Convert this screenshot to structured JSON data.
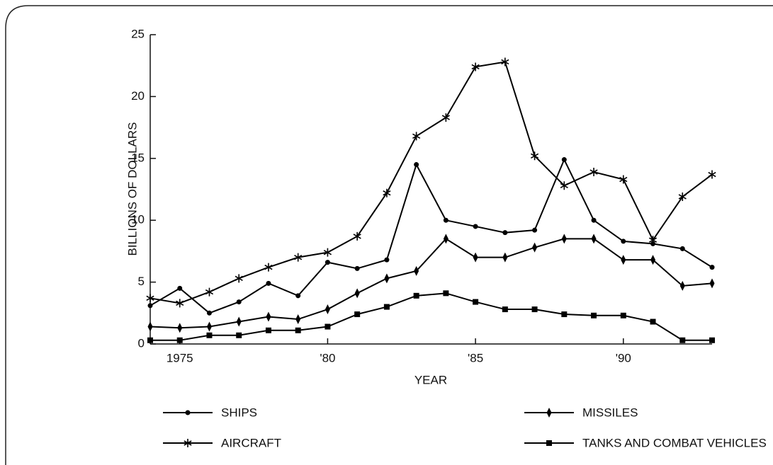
{
  "chart_data": {
    "type": "line",
    "x_label": "YEAR",
    "y_label": "BILLIONS OF DOLLARS",
    "x": [
      1974,
      1975,
      1976,
      1977,
      1978,
      1979,
      1980,
      1981,
      1982,
      1983,
      1984,
      1985,
      1986,
      1987,
      1988,
      1989,
      1990,
      1991,
      1992,
      1993
    ],
    "xlim": [
      1974,
      1993
    ],
    "xticks": [
      1975,
      {
        "value": 1980,
        "label": "'80"
      },
      {
        "value": 1985,
        "label": "'85"
      },
      {
        "value": 1990,
        "label": "'90"
      }
    ],
    "ylim": [
      0,
      25
    ],
    "yticks": [
      0,
      5,
      10,
      15,
      20,
      25
    ],
    "grid": false,
    "legend": "bottom",
    "series": [
      {
        "name": "SHIPS",
        "color": "#000000",
        "marker": "circle",
        "values": [
          3.1,
          4.5,
          2.5,
          3.4,
          4.9,
          3.9,
          6.6,
          6.1,
          6.8,
          14.5,
          10.0,
          9.5,
          9.0,
          9.2,
          14.9,
          10.0,
          8.3,
          8.1,
          7.7,
          6.2
        ]
      },
      {
        "name": "MISSILES",
        "color": "#000000",
        "marker": "diamond",
        "values": [
          1.4,
          1.3,
          1.4,
          1.8,
          2.2,
          2.0,
          2.8,
          4.1,
          5.3,
          5.9,
          8.5,
          7.0,
          7.0,
          7.8,
          8.5,
          8.5,
          6.8,
          6.8,
          4.7,
          4.9
        ]
      },
      {
        "name": "AIRCRAFT",
        "color": "#000000",
        "marker": "star",
        "values": [
          3.7,
          3.3,
          4.2,
          5.3,
          6.2,
          7.0,
          7.4,
          8.7,
          12.2,
          16.8,
          18.3,
          22.4,
          22.8,
          15.2,
          12.8,
          13.9,
          13.3,
          8.4,
          11.9,
          13.7
        ]
      },
      {
        "name": "TANKS AND COMBAT VEHICLES",
        "color": "#000000",
        "marker": "square",
        "values": [
          0.3,
          0.3,
          0.7,
          0.7,
          1.1,
          1.1,
          1.4,
          2.4,
          3.0,
          3.9,
          4.1,
          3.4,
          2.8,
          2.8,
          2.4,
          2.3,
          2.3,
          1.8,
          0.3,
          0.3
        ]
      }
    ]
  }
}
